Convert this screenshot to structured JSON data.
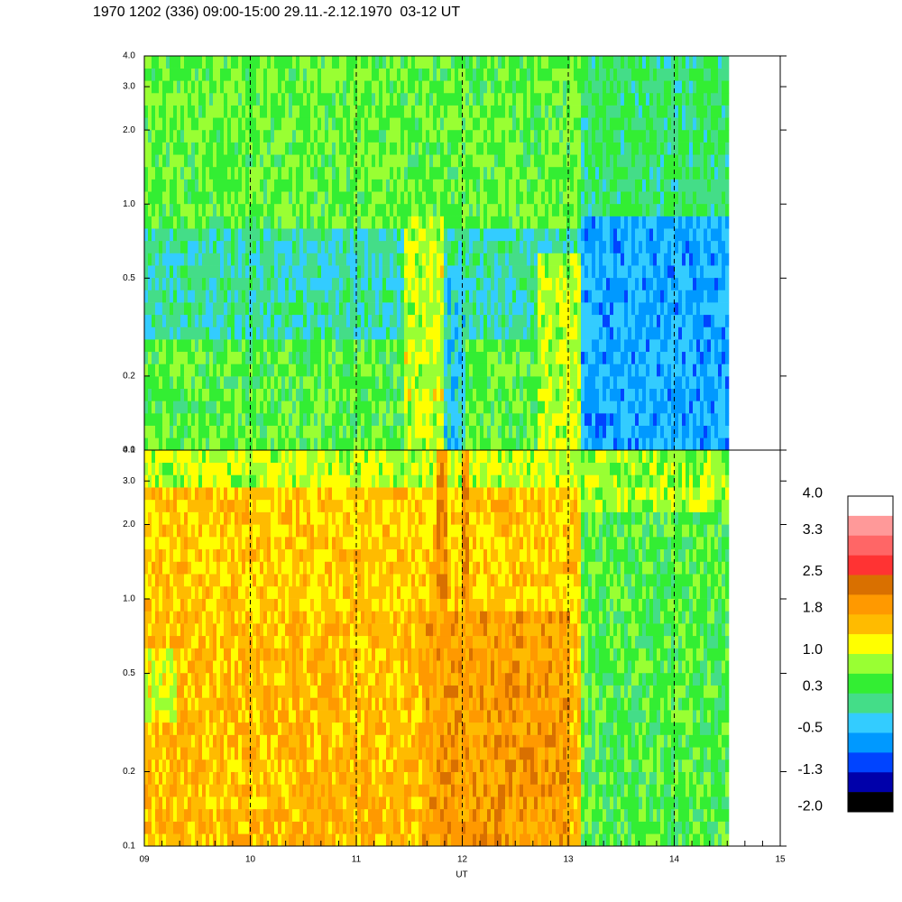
{
  "chart_data": {
    "type": "spectrogram",
    "title": "1970 1202 (336) 09:00-15:00 29.11.-2.12.1970  03-12 UT",
    "xlabel": "UT",
    "xlim": [
      9,
      15
    ],
    "xticks": [
      {
        "value": 9,
        "label": "09"
      },
      10,
      11,
      12,
      13,
      14,
      15
    ],
    "panels": [
      {
        "ylim": [
          0.1,
          4
        ],
        "log_scale": true,
        "yticks": [
          {
            "value": 4,
            "label": "4.0"
          },
          {
            "value": 3,
            "label": "3.0"
          },
          {
            "value": 2,
            "label": "2.0"
          },
          {
            "value": 1,
            "label": "1.0"
          },
          0.5,
          0.2,
          0.1
        ]
      },
      {
        "ylim": [
          0.1,
          4
        ],
        "log_scale": true,
        "yticks": [
          {
            "value": 4,
            "label": "4.0"
          },
          {
            "value": 3,
            "label": "3.0"
          },
          {
            "value": 2,
            "label": "2.0"
          },
          {
            "value": 1,
            "label": "1.0"
          },
          0.5,
          0.2,
          0.1
        ]
      }
    ],
    "colorbar": {
      "clim": [
        -2.1,
        3.95
      ],
      "colors": [
        "#ffffff",
        "#ff9999",
        "#ff6666",
        "#ff3333",
        "#d97000",
        "#ff9900",
        "#ffbb00",
        "#ffff00",
        "#99ff33",
        "#33ee33",
        "#44dd88",
        "#33ccff",
        "#0099ff",
        "#0044ff",
        "#0000aa",
        "#000000"
      ],
      "ticks": [
        {
          "value": 4,
          "label": "4.0"
        },
        3.3,
        2.5,
        1.8,
        {
          "value": 1,
          "label": "1.0"
        },
        0.3,
        -0.5,
        -1.3,
        {
          "value": -2,
          "label": "-2.0"
        }
      ]
    }
  }
}
